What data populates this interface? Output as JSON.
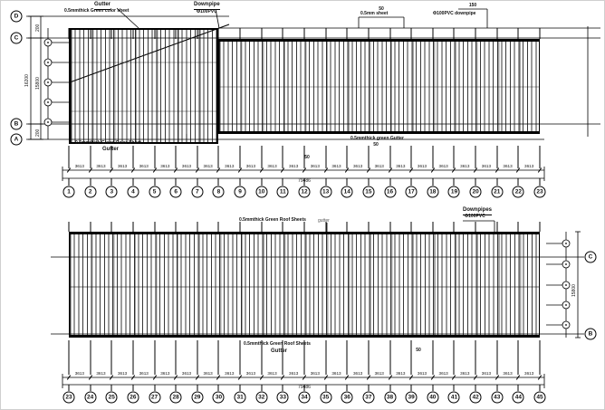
{
  "drawing_type": "roof-framing-plan",
  "top_plan": {
    "row_labels": {
      "d": "D",
      "c": "C",
      "b": "B",
      "a": "A"
    },
    "grid_numbers": [
      "1",
      "2",
      "3",
      "4",
      "5",
      "6",
      "7",
      "8",
      "9",
      "10",
      "11",
      "12",
      "13",
      "14",
      "15",
      "16",
      "17",
      "18",
      "19",
      "20",
      "21",
      "22",
      "23"
    ],
    "bay_dim": "3613",
    "total_dim": "79486",
    "dims": {
      "outer": "16200",
      "inner": "15800",
      "edge_top": "200",
      "edge_bottom": "200"
    },
    "labels": {
      "gutter_title": "Gutter",
      "sheet": "0.5mmthick Green color sheet",
      "downpipe": "Downpipe",
      "downpipe_size": "Φ100PVC",
      "eave_sheet_small": "0.5mm sheet",
      "eave_sheet_mark": "50",
      "downpipe_right": "Φ100PVC downpipe",
      "downpipe_right_mark": "150",
      "grid8_mark": "50",
      "bottom_sheet": "0.5mmthick Green Color Sheet",
      "bottom_gutter": "Gutter",
      "right_gutter": "0.5mmthick green Gutter",
      "right_gutter_mark": "50"
    }
  },
  "bottom_plan": {
    "row_labels": {
      "c": "C",
      "b": "B"
    },
    "grid_numbers": [
      "23",
      "24",
      "25",
      "26",
      "27",
      "28",
      "29",
      "30",
      "31",
      "32",
      "33",
      "34",
      "35",
      "36",
      "37",
      "38",
      "39",
      "40",
      "41",
      "42",
      "43",
      "44",
      "45"
    ],
    "bay_dim": "3613",
    "total_dim": "79486",
    "dims": {
      "inner": "15800"
    },
    "labels": {
      "top_sheet": "0.5mmthick Green Roof Sheets",
      "top_gutter": "gutter",
      "downpipes": "Downpipes",
      "downpipes_size": "Φ100PVC",
      "bottom_sheet": "0.5mmthick Green Roof Sheets",
      "bottom_gutter": "Gutter",
      "bottom_mark": "50"
    }
  }
}
